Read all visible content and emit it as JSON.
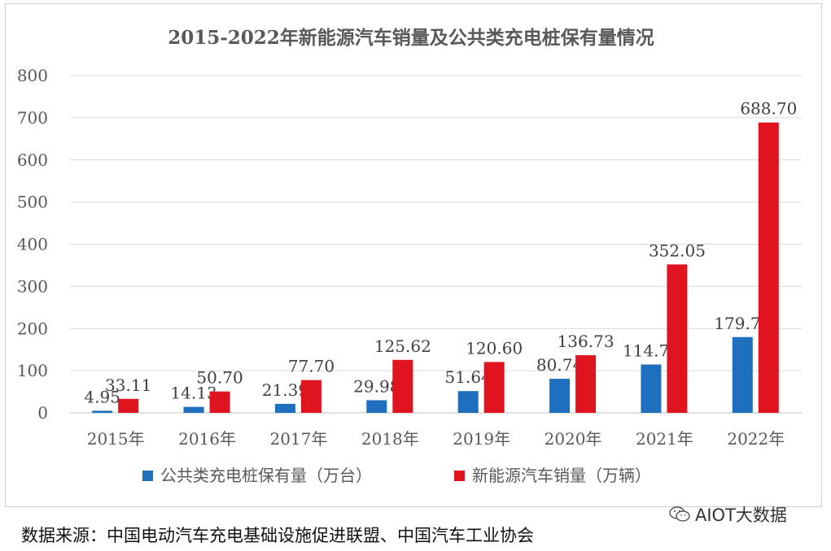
{
  "chart_data": {
    "type": "bar",
    "title": "2015-2022年新能源汽车销量及公共类充电桩保有量情况",
    "categories": [
      "2015年",
      "2016年",
      "2017年",
      "2018年",
      "2019年",
      "2020年",
      "2021年",
      "2022年"
    ],
    "series": [
      {
        "name": "公共类充电桩保有量（万台）",
        "color": "#1f6fbf",
        "values": [
          4.95,
          14.13,
          21.39,
          29.98,
          51.64,
          80.74,
          114.7,
          179.7
        ],
        "labels": [
          "4.95",
          "14.13",
          "21.39",
          "29.98",
          "51.64",
          "80.74",
          "114.70",
          "179.70"
        ]
      },
      {
        "name": "新能源汽车销量（万辆）",
        "color": "#e0141e",
        "values": [
          33.11,
          50.7,
          77.7,
          125.62,
          120.6,
          136.73,
          352.05,
          688.7
        ],
        "labels": [
          "33.11",
          "50.70",
          "77.70",
          "125.62",
          "120.60",
          "136.73",
          "352.05",
          "688.70"
        ]
      }
    ],
    "ylim": [
      0,
      800
    ],
    "yticks": [
      "0",
      "100",
      "200",
      "300",
      "400",
      "500",
      "600",
      "700",
      "800"
    ],
    "grid": true,
    "legend": "bottom"
  },
  "footer": {
    "source": "数据来源：中国电动汽车充电基础设施促进联盟、中国汽车工业协会",
    "watermark": "AIOT大数据"
  }
}
